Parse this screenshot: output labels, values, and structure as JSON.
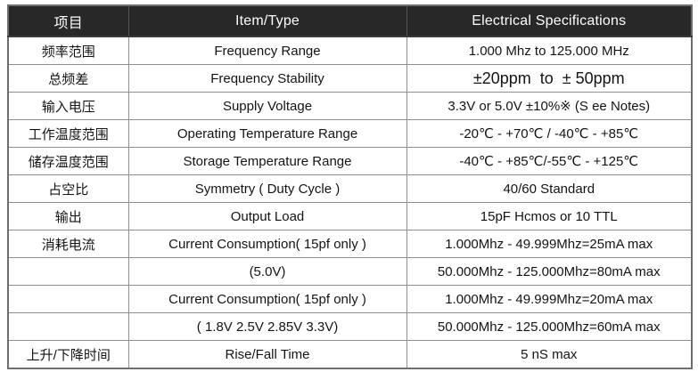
{
  "table": {
    "header": {
      "item_cn": "项目",
      "item_en": "Item/Type",
      "spec": "Electrical Specifications"
    },
    "rows": [
      {
        "item": "频率范围",
        "type": "Frequency Range",
        "spec": "1.000 Mhz to 125.000 MHz"
      },
      {
        "item": "总频差",
        "type": "Frequency Stability",
        "spec": "±20ppm  to  ± 50ppm"
      },
      {
        "item": "输入电压",
        "type": "Supply Voltage",
        "spec": "3.3V or 5.0V ±10%※ (S ee Notes)"
      },
      {
        "item": "工作温度范围",
        "type": "Operating Temperature Range",
        "spec": "-20℃ - +70℃ / -40℃ - +85℃"
      },
      {
        "item": "储存温度范围",
        "type": "Storage Temperature Range",
        "spec": "-40℃ - +85℃/-55℃ - +125℃"
      },
      {
        "item": "占空比",
        "type": "Symmetry ( Duty Cycle )",
        "spec": "40/60 Standard"
      },
      {
        "item": "输出",
        "type": "Output Load",
        "spec": "15pF Hcmos or 10 TTL"
      },
      {
        "item": "消耗电流",
        "type": "Current Consumption( 15pf only )",
        "spec": "1.000Mhz - 49.999Mhz=25mA max"
      },
      {
        "item": "",
        "type": "(5.0V)",
        "spec": "50.000Mhz - 125.000Mhz=80mA max"
      },
      {
        "item": "",
        "type": "Current Consumption( 15pf only )",
        "spec": "1.000Mhz - 49.999Mhz=20mA max"
      },
      {
        "item": "",
        "type": "( 1.8V 2.5V 2.85V 3.3V)",
        "spec": "50.000Mhz - 125.000Mhz=60mA max"
      },
      {
        "item": "上升/下降时间",
        "type": "Rise/Fall Time",
        "spec": "5 nS max"
      }
    ]
  },
  "colors": {
    "header_bg": "#282828",
    "header_text": "#ffffff",
    "grid_border": "#8f8f8f",
    "outer_border": "#6e6e6e",
    "body_text": "#141414"
  }
}
